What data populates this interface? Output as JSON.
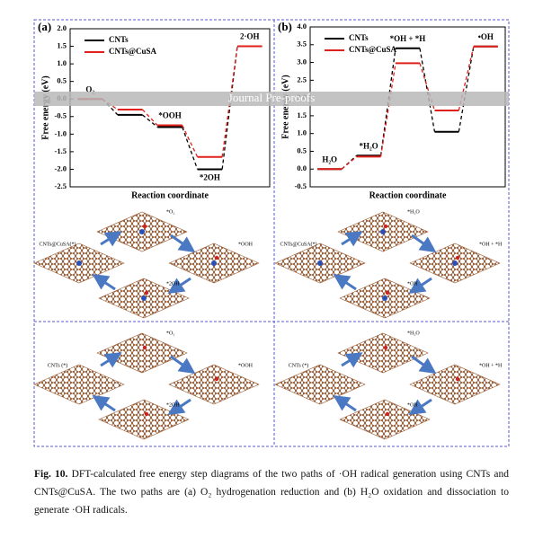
{
  "watermark": "Journal Pre-proofs",
  "charts": [
    {
      "type": "step",
      "panel": "(a)",
      "y_label": "Free energy (eV)",
      "x_label": "Reaction coordinate",
      "categories": [
        "O₂",
        null,
        "*OOH",
        "*2OH",
        "2·OH"
      ],
      "ylim": [
        -2.5,
        2.0
      ],
      "yticks": [
        {
          "value": -2.5,
          "label": "-2.5"
        },
        {
          "value": -2.0,
          "label": "-2.0"
        },
        {
          "value": -1.5,
          "label": "-1.5"
        },
        {
          "value": -1.0,
          "label": "-1.0"
        },
        {
          "value": -0.5,
          "label": "-0.5"
        },
        {
          "value": 0,
          "label": "0.0"
        },
        {
          "value": 0.5,
          "label": "0.5"
        },
        {
          "value": 1.0,
          "label": "1.0"
        },
        {
          "value": 1.5,
          "label": "1.5"
        },
        {
          "value": 2.0,
          "label": "2.0"
        }
      ],
      "series": [
        {
          "name": "CNTs",
          "color": "#000000",
          "values": [
            0,
            -0.45,
            -0.8,
            -2.0,
            1.5
          ]
        },
        {
          "name": "CNTs@CuSA",
          "color": "#e0201b",
          "values": [
            0,
            -0.3,
            -0.75,
            -1.65,
            1.5
          ]
        }
      ]
    },
    {
      "type": "step",
      "panel": "(b)",
      "y_label": "Free energy (eV)",
      "x_label": "Reaction coordinate",
      "categories": [
        "H₂O",
        "*H₂O",
        "*OH + *H",
        null,
        "•OH"
      ],
      "ylim": [
        -0.5,
        4.0
      ],
      "yticks": [
        {
          "value": -0.5,
          "label": "-0.5"
        },
        {
          "value": 0,
          "label": "0.0"
        },
        {
          "value": 0.5,
          "label": "0.5"
        },
        {
          "value": 1.0,
          "label": "1.0"
        },
        {
          "value": 1.5,
          "label": "1.5"
        },
        {
          "value": 2.0,
          "label": "2.0"
        },
        {
          "value": 2.5,
          "label": "2.5"
        },
        {
          "value": 3.0,
          "label": "3.0"
        },
        {
          "value": 3.5,
          "label": "3.5"
        },
        {
          "value": 4.0,
          "label": "4.0"
        }
      ],
      "series": [
        {
          "name": "CNTs",
          "color": "#000000",
          "values": [
            0,
            0.38,
            3.4,
            1.05,
            3.45
          ]
        },
        {
          "name": "CNTs@CuSA",
          "color": "#e0201b",
          "values": [
            0,
            0.35,
            2.98,
            1.65,
            3.45
          ]
        }
      ]
    }
  ],
  "illustrations": [
    {
      "labels": [
        "CNTs@CuSA(*)",
        "*O₂",
        "*OOH",
        "*2OH"
      ]
    },
    {
      "labels": [
        "CNTs (*)",
        "*O₂",
        "*OOH",
        "*2OH"
      ]
    },
    {
      "labels": [
        "CNTs@CuSA(*)",
        "*H₂O",
        "*OH + *H",
        "*OH"
      ]
    },
    {
      "labels": [
        "CNTs (*)",
        "*H₂O",
        "*OH + *H",
        "*OH"
      ]
    }
  ],
  "caption": {
    "label": "Fig. 10.",
    "text": "DFT-calculated free energy step diagrams of the two paths of ·OH radical generation using CNTs and CNTs@CuSA. The two paths are (a) O₂ hydrogenation reduction and (b) H₂O oxidation and dissociation to generate ·OH radicals."
  }
}
